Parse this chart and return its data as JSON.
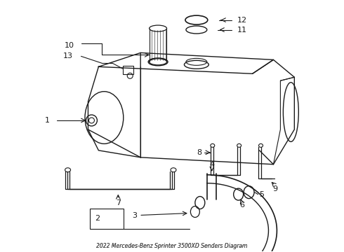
{
  "title": "2022 Mercedes-Benz Sprinter 3500XD Senders Diagram",
  "bg": "#ffffff",
  "lc": "#1a1a1a",
  "fig_w": 4.9,
  "fig_h": 3.6,
  "dpi": 100
}
